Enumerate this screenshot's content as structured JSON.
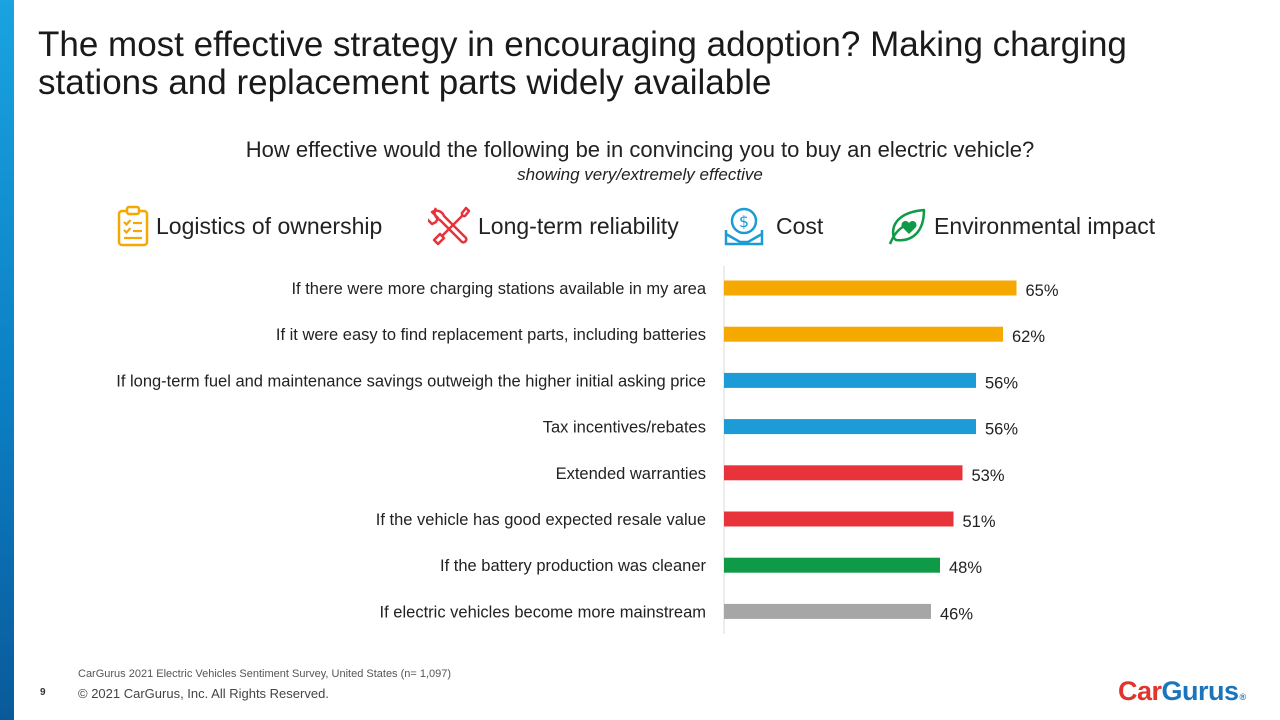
{
  "slide": {
    "title": "The most effective strategy in encouraging adoption? Making charging stations and replacement parts widely available",
    "question": "How effective would the following be in convincing you to buy an electric vehicle?",
    "subquestion": "showing very/extremely effective"
  },
  "legend": [
    {
      "label": "Logistics of ownership",
      "icon": "clipboard-checklist-icon",
      "color": "#F5A800"
    },
    {
      "label": "Long-term reliability",
      "icon": "wrench-screwdriver-icon",
      "color": "#E8333A"
    },
    {
      "label": "Cost",
      "icon": "money-dollar-icon",
      "color": "#1C9BD7"
    },
    {
      "label": "Environmental impact",
      "icon": "leaf-heart-icon",
      "color": "#0E9A47"
    }
  ],
  "chart_data": {
    "type": "bar",
    "orientation": "horizontal",
    "title": "How effective would the following be in convincing you to buy an electric vehicle?",
    "subtitle": "showing very/extremely effective",
    "xlim": [
      0,
      100
    ],
    "grid": false,
    "value_suffix": "%",
    "categories": [
      "If there were more charging stations available in my area",
      "If it were easy to find replacement parts, including batteries",
      "If long-term fuel and maintenance savings outweigh the higher initial asking price",
      "Tax incentives/rebates",
      "Extended warranties",
      "If the vehicle has good expected resale value",
      "If the battery production was cleaner",
      "If electric vehicles become more mainstream"
    ],
    "values": [
      65,
      62,
      56,
      56,
      53,
      51,
      48,
      46
    ],
    "labels": [
      "65%",
      "62%",
      "56%",
      "56%",
      "53%",
      "51%",
      "48%",
      "46%"
    ],
    "colors": [
      "#F5A800",
      "#F5A800",
      "#1C9BD7",
      "#1C9BD7",
      "#E8333A",
      "#E8333A",
      "#0E9A47",
      "#A6A6A6"
    ]
  },
  "footer": {
    "source": "CarGurus 2021 Electric Vehicles Sentiment Survey, United States (n= 1,097)",
    "page_number": "9",
    "copyright": "© 2021 CarGurus, Inc.  All Rights Reserved.",
    "logo_car": "Car",
    "logo_gurus": "Gurus",
    "logo_tm": "®"
  }
}
